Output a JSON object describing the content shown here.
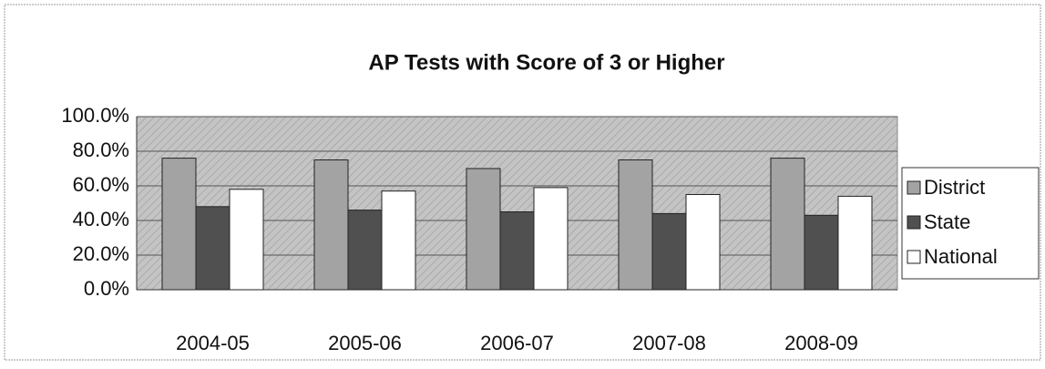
{
  "chart_data": {
    "type": "bar",
    "title": "AP Tests with Score of 3 or Higher",
    "categories": [
      "2004-05",
      "2005-06",
      "2006-07",
      "2007-08",
      "2008-09"
    ],
    "series": [
      {
        "name": "District",
        "color": "#a3a3a3",
        "values": [
          76,
          75,
          70,
          75,
          76
        ]
      },
      {
        "name": "State",
        "color": "#505050",
        "values": [
          48,
          46,
          45,
          44,
          43
        ]
      },
      {
        "name": "National",
        "color": "#ffffff",
        "values": [
          58,
          57,
          59,
          55,
          54
        ]
      }
    ],
    "ylim": [
      0,
      100
    ],
    "yticks": [
      {
        "value": 0,
        "label": "0.0%"
      },
      {
        "value": 20,
        "label": "20.0%"
      },
      {
        "value": 40,
        "label": "40.0%"
      },
      {
        "value": 60,
        "label": "60.0%"
      },
      {
        "value": 80,
        "label": "80.0%"
      },
      {
        "value": 100,
        "label": "100.0%"
      }
    ],
    "grid": true,
    "legend": "right"
  }
}
